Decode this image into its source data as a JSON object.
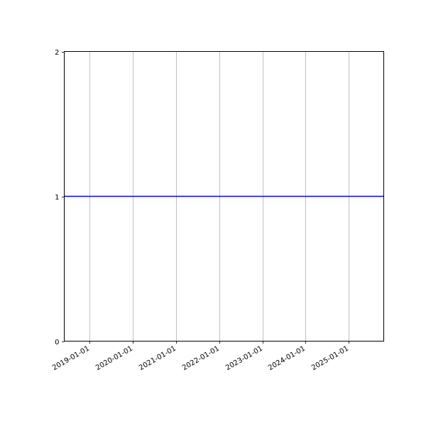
{
  "chart_data": {
    "type": "line",
    "title": "",
    "xlabel": "",
    "ylabel": "",
    "x_scale": "date",
    "xlim": [
      "2018-06-03",
      "2025-10-22"
    ],
    "ylim": [
      0,
      2
    ],
    "x_ticks": [
      "2019-01-01",
      "2020-01-01",
      "2021-01-01",
      "2022-01-01",
      "2023-01-01",
      "2024-01-01",
      "2025-01-01"
    ],
    "y_ticks": [
      0,
      1,
      2
    ],
    "y_tick_labels": [
      "0",
      "1",
      "2"
    ],
    "grid": {
      "x": true,
      "y": false,
      "color": "#b0b0b0"
    },
    "series": [
      {
        "x": [
          "2018-06-03",
          "2025-10-22"
        ],
        "y": [
          1,
          1
        ],
        "color": "#0000ff"
      }
    ]
  }
}
